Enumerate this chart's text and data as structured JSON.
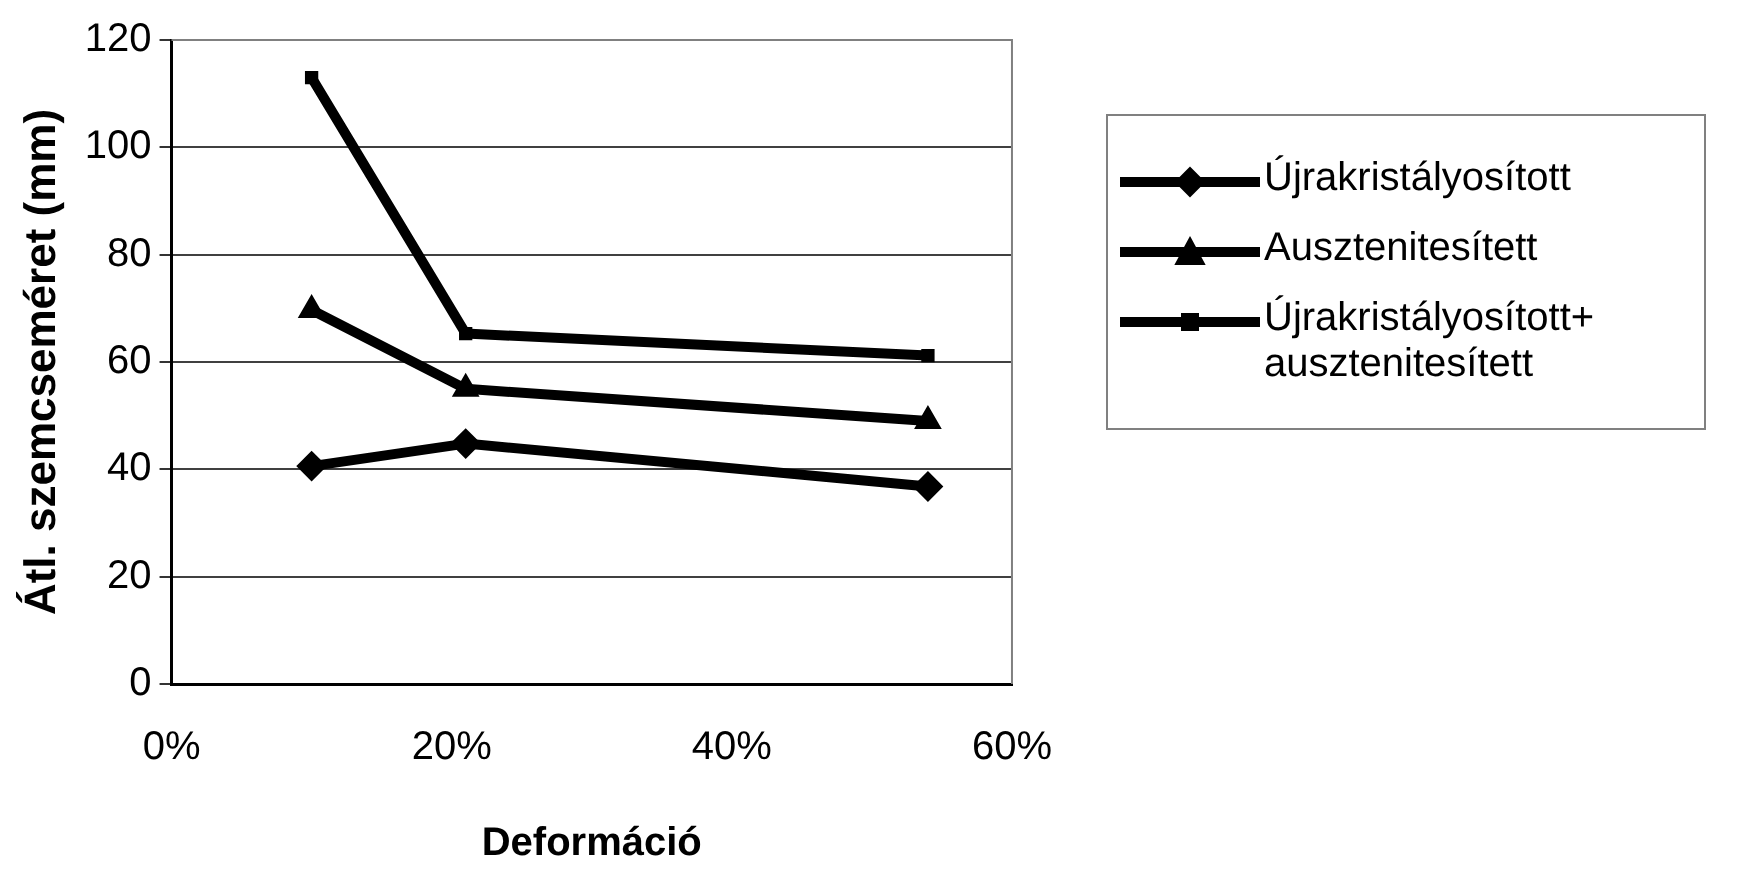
{
  "chart_data": {
    "type": "line",
    "xlabel": "Deformáció",
    "ylabel": "Átl. szemcseméret (mm)",
    "x": [
      10,
      21,
      54
    ],
    "series": [
      {
        "name": "Újrakristályosított",
        "color": "#000000",
        "marker": "diamond",
        "values": [
          40.6,
          44.8,
          36.8
        ]
      },
      {
        "name": "Ausztenitesített",
        "color": "#000000",
        "marker": "triangle",
        "values": [
          69.7,
          55,
          49
        ]
      },
      {
        "name": "Újrakristályosított+ ausztenitesített",
        "color": "#000000",
        "marker": "square",
        "values": [
          113,
          65.3,
          61.2
        ]
      }
    ],
    "xlim": [
      0,
      60
    ],
    "xticks": [
      {
        "value": 0,
        "label": "0%"
      },
      {
        "value": 20,
        "label": "20%"
      },
      {
        "value": 40,
        "label": "40%"
      },
      {
        "value": 60,
        "label": "60%"
      }
    ],
    "ylim": [
      0,
      120
    ],
    "yticks": [
      0,
      20,
      40,
      60,
      80,
      100,
      120
    ],
    "grid": "y",
    "legend": "right",
    "line_style": "solid"
  }
}
